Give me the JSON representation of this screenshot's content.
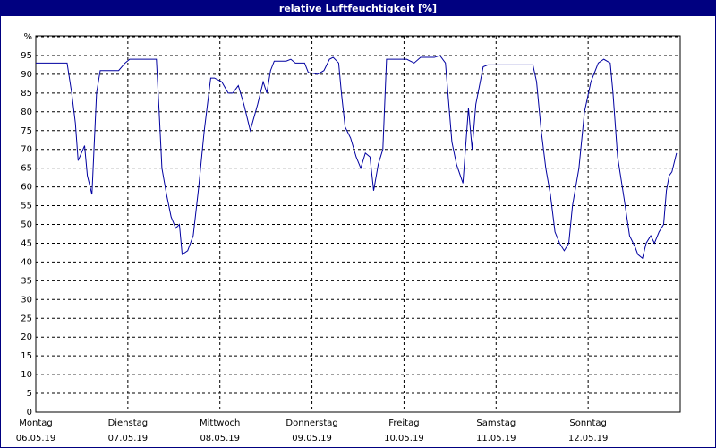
{
  "chart_data": {
    "type": "line",
    "title": "relative Luftfeuchtigkeit [%]",
    "x": [
      0,
      0.34,
      0.39,
      0.43,
      0.46,
      0.53,
      0.56,
      0.61,
      0.66,
      0.7,
      0.9,
      0.97,
      1.02,
      1.31,
      1.34,
      1.37,
      1.42,
      1.47,
      1.52,
      1.56,
      1.59,
      1.65,
      1.71,
      1.77,
      1.83,
      1.9,
      1.94,
      2.02,
      2.09,
      2.14,
      2.2,
      2.26,
      2.33,
      2.41,
      2.47,
      2.51,
      2.55,
      2.59,
      2.72,
      2.77,
      2.82,
      2.92,
      2.96,
      3.06,
      3.13,
      3.19,
      3.23,
      3.29,
      3.32,
      3.36,
      3.42,
      3.48,
      3.53,
      3.58,
      3.63,
      3.67,
      3.72,
      3.77,
      3.81,
      4.03,
      4.11,
      4.18,
      4.33,
      4.39,
      4.45,
      4.52,
      4.57,
      4.64,
      4.7,
      4.74,
      4.78,
      4.86,
      4.91,
      5.4,
      5.44,
      5.49,
      5.54,
      5.59,
      5.64,
      5.69,
      5.74,
      5.79,
      5.83,
      5.9,
      5.96,
      6.03,
      6.11,
      6.17,
      6.24,
      6.27,
      6.32,
      6.39,
      6.45,
      6.51,
      6.54,
      6.59,
      6.63,
      6.68,
      6.72,
      6.77,
      6.82,
      6.85,
      6.88,
      6.91,
      6.96
    ],
    "series": [
      {
        "name": "relative Luftfeuchtigkeit",
        "color": "#0000a0",
        "values": [
          93,
          93,
          85,
          77,
          67,
          71,
          63,
          58,
          85,
          91,
          91,
          93,
          94,
          94,
          80,
          65,
          58,
          52,
          49,
          50,
          42,
          43,
          47,
          60,
          75,
          89,
          89,
          88,
          85,
          85,
          87,
          82,
          75,
          82,
          88,
          85,
          91,
          93.5,
          93.5,
          94,
          93,
          93,
          90.5,
          90,
          91,
          94,
          94.5,
          93,
          85,
          76,
          73,
          68,
          65,
          69,
          68,
          59,
          66,
          70,
          94,
          94,
          93,
          94.5,
          94.5,
          95,
          93,
          72,
          66,
          61,
          81,
          70,
          82,
          92,
          92.5,
          92.5,
          88,
          75,
          65,
          58,
          48,
          45,
          43,
          45,
          55,
          65,
          80,
          88,
          93,
          94,
          93,
          85,
          68,
          57,
          47,
          44,
          42,
          41,
          45,
          47,
          45,
          48,
          50,
          59,
          63,
          64,
          69
        ]
      }
    ],
    "xlim": [
      0,
      7
    ],
    "xticks": [
      {
        "value": 0,
        "label": "06.05.19"
      },
      {
        "value": 1,
        "label": "07.05.19"
      },
      {
        "value": 2,
        "label": "08.05.19"
      },
      {
        "value": 3,
        "label": "09.05.19"
      },
      {
        "value": 4,
        "label": "10.05.19"
      },
      {
        "value": 5,
        "label": "11.05.19"
      },
      {
        "value": 6,
        "label": "12.05.19"
      }
    ],
    "xtick_days": [
      "Montag",
      "Dienstag",
      "Mittwoch",
      "Donnerstag",
      "Freitag",
      "Samstag",
      "Sonntag"
    ],
    "ylim": [
      0,
      100
    ],
    "yticks": [
      0,
      5,
      10,
      15,
      20,
      25,
      30,
      35,
      40,
      45,
      50,
      55,
      60,
      65,
      70,
      75,
      80,
      85,
      90,
      95,
      {
        "value": 100,
        "label": "%"
      }
    ],
    "grid": true
  }
}
